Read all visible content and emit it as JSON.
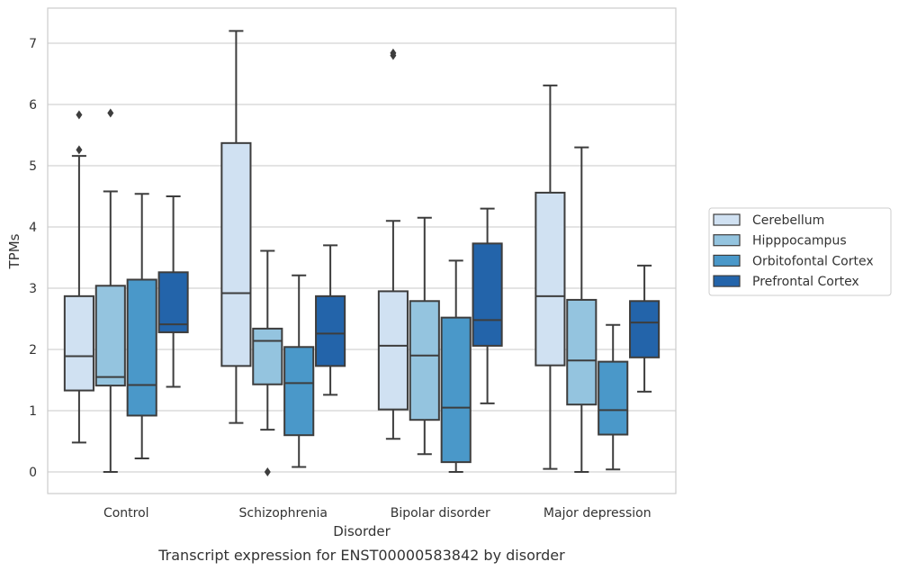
{
  "chart_data": {
    "type": "boxplot",
    "caption": "Transcript expression for ENST00000583842 by disorder",
    "xlabel": "Disorder",
    "ylabel": "TPMs",
    "ylim": [
      -0.35,
      7.6
    ],
    "yticks": [
      0,
      1,
      2,
      3,
      4,
      5,
      6,
      7
    ],
    "grid": "horizontal",
    "legend_position": "right",
    "categories": [
      "Control",
      "Schizophrenia",
      "Bipolar disorder",
      "Major depression"
    ],
    "series": [
      {
        "name": "Cerebellum",
        "color": "#d0e1f2",
        "boxes": [
          {
            "whisker_low": 0.48,
            "q1": 1.33,
            "median": 1.89,
            "q3": 2.87,
            "whisker_high": 5.16,
            "outliers": [
              5.26,
              5.83
            ]
          },
          {
            "whisker_low": 0.8,
            "q1": 1.73,
            "median": 2.92,
            "q3": 5.37,
            "whisker_high": 7.2,
            "outliers": []
          },
          {
            "whisker_low": 0.54,
            "q1": 1.02,
            "median": 2.06,
            "q3": 2.95,
            "whisker_high": 4.1,
            "outliers": [
              6.8,
              6.84
            ]
          },
          {
            "whisker_low": 0.05,
            "q1": 1.74,
            "median": 2.87,
            "q3": 4.56,
            "whisker_high": 6.31,
            "outliers": []
          }
        ]
      },
      {
        "name": "Hipppocampus",
        "color": "#94c4df",
        "boxes": [
          {
            "whisker_low": 0.0,
            "q1": 1.41,
            "median": 1.55,
            "q3": 3.04,
            "whisker_high": 4.58,
            "outliers": [
              5.86
            ]
          },
          {
            "whisker_low": 0.69,
            "q1": 1.43,
            "median": 2.14,
            "q3": 2.34,
            "whisker_high": 3.61,
            "outliers": [
              0.0
            ]
          },
          {
            "whisker_low": 0.29,
            "q1": 0.85,
            "median": 1.9,
            "q3": 2.79,
            "whisker_high": 4.15,
            "outliers": []
          },
          {
            "whisker_low": 0.0,
            "q1": 1.1,
            "median": 1.82,
            "q3": 2.81,
            "whisker_high": 5.3,
            "outliers": []
          }
        ]
      },
      {
        "name": "Orbitofontal Cortex",
        "color": "#4a98c9",
        "boxes": [
          {
            "whisker_low": 0.22,
            "q1": 0.92,
            "median": 1.42,
            "q3": 3.14,
            "whisker_high": 4.54,
            "outliers": []
          },
          {
            "whisker_low": 0.08,
            "q1": 0.6,
            "median": 1.45,
            "q3": 2.04,
            "whisker_high": 3.21,
            "outliers": []
          },
          {
            "whisker_low": 0.0,
            "q1": 0.16,
            "median": 1.05,
            "q3": 2.52,
            "whisker_high": 3.45,
            "outliers": []
          },
          {
            "whisker_low": 0.04,
            "q1": 0.61,
            "median": 1.01,
            "q3": 1.8,
            "whisker_high": 2.4,
            "outliers": []
          }
        ]
      },
      {
        "name": "Prefrontal Cortex",
        "color": "#2364aa",
        "boxes": [
          {
            "whisker_low": 1.39,
            "q1": 2.28,
            "median": 2.41,
            "q3": 3.26,
            "whisker_high": 4.5,
            "outliers": []
          },
          {
            "whisker_low": 1.26,
            "q1": 1.73,
            "median": 2.26,
            "q3": 2.87,
            "whisker_high": 3.7,
            "outliers": []
          },
          {
            "whisker_low": 1.12,
            "q1": 2.06,
            "median": 2.48,
            "q3": 3.73,
            "whisker_high": 4.3,
            "outliers": []
          },
          {
            "whisker_low": 1.31,
            "q1": 1.87,
            "median": 2.44,
            "q3": 2.79,
            "whisker_high": 3.37,
            "outliers": []
          }
        ]
      }
    ]
  }
}
